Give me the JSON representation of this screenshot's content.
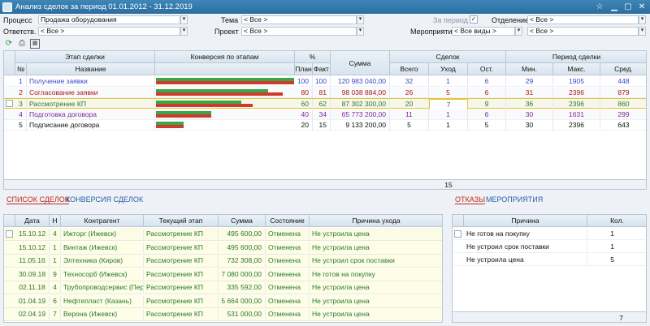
{
  "window": {
    "title": "Анализ сделок за период 01.01.2012 - 31.12.2019"
  },
  "filters": {
    "process_label": "Процесс",
    "process_value": "Продажа оборудования",
    "responsible_label": "Ответств.",
    "responsible_value": "< Все >",
    "theme_label": "Тема",
    "theme_value": "< Все >",
    "project_label": "Проект",
    "project_value": "< Все >",
    "period_label": "За период",
    "period_checked": "✓",
    "department_label": "Отделение",
    "department_value": "< Все >",
    "event_label": "Мероприятие",
    "event_value": "< Все виды >",
    "event_value2": "< Все >"
  },
  "stages": {
    "headers": {
      "stage": "Этап сделки",
      "num": "№",
      "name": "Название",
      "conversion": "Конверсия по этапам",
      "pct": "%",
      "plan": "План",
      "fact": "Факт",
      "sum": "Сумма",
      "deal": "Сделок",
      "total": "Всего",
      "left": "Уход",
      "rest": "Ост.",
      "period": "Период сделки",
      "min": "Мин.",
      "max": "Макс.",
      "avg": "Сред."
    },
    "rows": [
      {
        "num": "1",
        "name": "Получение заявки",
        "plan": "100",
        "fact": "100",
        "sum": "120 983 040,00",
        "total": "32",
        "left": "1",
        "rest": "6",
        "min": "29",
        "max": "1905",
        "avg": "448",
        "color": "#3a48c8",
        "green": 1.0,
        "red": 1.0
      },
      {
        "num": "2",
        "name": "Согласование заявки",
        "plan": "80",
        "fact": "81",
        "sum": "98 038 884,00",
        "total": "26",
        "left": "5",
        "rest": "6",
        "min": "31",
        "max": "2396",
        "avg": "879",
        "color": "#b01818",
        "green": 0.81,
        "red": 0.92
      },
      {
        "num": "3",
        "name": "Рассмотрение КП",
        "plan": "60",
        "fact": "62",
        "sum": "87 302 300,00",
        "total": "20",
        "left": "7",
        "rest": "9",
        "min": "36",
        "max": "2396",
        "avg": "860",
        "color": "#2a7a2a",
        "green": 0.62,
        "red": 0.7
      },
      {
        "num": "4",
        "name": "Подготовка договора",
        "plan": "40",
        "fact": "34",
        "sum": "65 773 200,00",
        "total": "11",
        "left": "1",
        "rest": "6",
        "min": "30",
        "max": "1631",
        "avg": "299",
        "color": "#7a2a9a",
        "green": 0.4,
        "red": 0.4
      },
      {
        "num": "5",
        "name": "Подписание договора",
        "plan": "20",
        "fact": "15",
        "sum": "9 133 200,00",
        "total": "5",
        "left": "1",
        "rest": "5",
        "min": "30",
        "max": "2396",
        "avg": "643",
        "color": "#111111",
        "green": 0.2,
        "red": 0.2
      }
    ],
    "footer_count": "15"
  },
  "left_tabs": {
    "deals": "СПИСОК СДЕЛОК",
    "conversion": "КОНВЕРСИЯ СДЕЛОК"
  },
  "right_tabs": {
    "refusals": "ОТКАЗЫ",
    "events": "МЕРОПРИЯТИЯ"
  },
  "deals": {
    "headers": {
      "date": "Дата",
      "h": "Н",
      "contractor": "Контрагент",
      "stage": "Текущий этап",
      "sum": "Сумма",
      "state": "Состояние",
      "reason": "Причина ухода"
    },
    "rows": [
      {
        "date": "15.10.12",
        "h": "4",
        "contractor": "Ижторг (Ижевск)",
        "stage": "Рассмотрение КП",
        "sum": "495 600,00",
        "state": "Отменена",
        "reason": "Не устроила цена"
      },
      {
        "date": "15.10.12",
        "h": "1",
        "contractor": "Винтаж (Ижевск)",
        "stage": "Рассмотрение КП",
        "sum": "495 600,00",
        "state": "Отменена",
        "reason": "Не устроила цена"
      },
      {
        "date": "11.05.16",
        "h": "1",
        "contractor": "Элтехника (Киров)",
        "stage": "Рассмотрение КП",
        "sum": "732 308,00",
        "state": "Отменена",
        "reason": "Не устроил срок поставки"
      },
      {
        "date": "30.09.18",
        "h": "9",
        "contractor": "Техносорб (Ижевск)",
        "stage": "Рассмотрение КП",
        "sum": "7 080 000,00",
        "state": "Отменена",
        "reason": "Не готов на покупку"
      },
      {
        "date": "02.11.18",
        "h": "4",
        "contractor": "Трубопроводсервис (Перм",
        "stage": "Рассмотрение КП",
        "sum": "335 592,00",
        "state": "Отменена",
        "reason": "Не устроила цена"
      },
      {
        "date": "01.04.19",
        "h": "6",
        "contractor": "Нефтеплаcт (Казань)",
        "stage": "Рассмотрение КП",
        "sum": "5 664 000,00",
        "state": "Отменена",
        "reason": "Не устроила цена"
      },
      {
        "date": "02.04.19",
        "h": "7",
        "contractor": "Верона (Ижевск)",
        "stage": "Рассмотрение КП",
        "sum": "531 000,00",
        "state": "Отменена",
        "reason": "Не устроила цена"
      }
    ]
  },
  "refusals": {
    "headers": {
      "reason": "Причина",
      "count": "Кол."
    },
    "rows": [
      {
        "reason": "Не готов на покупку",
        "count": "1"
      },
      {
        "reason": "Не устроил срок поставки",
        "count": "1"
      },
      {
        "reason": "Не устроила цена",
        "count": "5"
      }
    ],
    "footer_count": "7"
  }
}
